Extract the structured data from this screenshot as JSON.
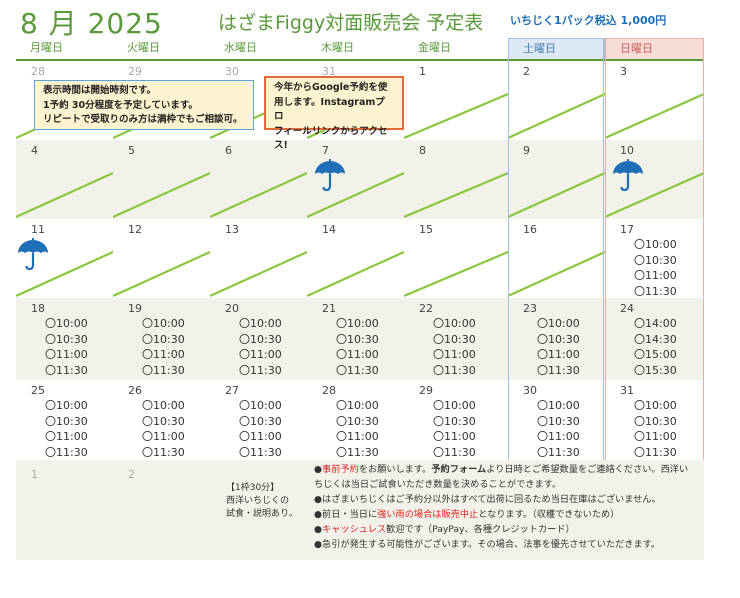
{
  "header": {
    "month": "8 月 2025",
    "title": "はざまFiggy対面販売会 予定表",
    "price": "いちじく1パック税込 1,000円"
  },
  "weekdays": [
    "月曜日",
    "火曜日",
    "水曜日",
    "木曜日",
    "金曜日",
    "土曜日",
    "日曜日"
  ],
  "weeks": [
    [
      {
        "d": "28",
        "dim": true
      },
      {
        "d": "29",
        "dim": true
      },
      {
        "d": "30",
        "dim": true
      },
      {
        "d": "31",
        "dim": true
      },
      {
        "d": "1"
      },
      {
        "d": "2"
      },
      {
        "d": "3"
      }
    ],
    [
      {
        "d": "4"
      },
      {
        "d": "5"
      },
      {
        "d": "6"
      },
      {
        "d": "7",
        "rain": true
      },
      {
        "d": "8"
      },
      {
        "d": "9"
      },
      {
        "d": "10",
        "rain": true
      }
    ],
    [
      {
        "d": "11",
        "rain": true
      },
      {
        "d": "12"
      },
      {
        "d": "13"
      },
      {
        "d": "14"
      },
      {
        "d": "15"
      },
      {
        "d": "16"
      },
      {
        "d": "17",
        "slots": [
          "〇10:00",
          "〇10:30",
          "〇11:00",
          "〇11:30"
        ]
      }
    ],
    [
      {
        "d": "18",
        "slots": [
          "〇10:00",
          "〇10:30",
          "〇11:00",
          "〇11:30"
        ]
      },
      {
        "d": "19",
        "slots": [
          "〇10:00",
          "〇10:30",
          "〇11:00",
          "〇11:30"
        ]
      },
      {
        "d": "20",
        "slots": [
          "〇10:00",
          "〇10:30",
          "〇11:00",
          "〇11:30"
        ]
      },
      {
        "d": "21",
        "slots": [
          "〇10:00",
          "〇10:30",
          "〇11:00",
          "〇11:30"
        ]
      },
      {
        "d": "22",
        "slots": [
          "〇10:00",
          "〇10:30",
          "〇11:00",
          "〇11:30"
        ]
      },
      {
        "d": "23",
        "slots": [
          "〇10:00",
          "〇10:30",
          "〇11:00",
          "〇11:30"
        ]
      },
      {
        "d": "24",
        "slots": [
          "〇14:00",
          "〇14:30",
          "〇15:00",
          "〇15:30"
        ]
      }
    ],
    [
      {
        "d": "25",
        "slots": [
          "〇10:00",
          "〇10:30",
          "〇11:00",
          "〇11:30"
        ]
      },
      {
        "d": "26",
        "slots": [
          "〇10:00",
          "〇10:30",
          "〇11:00",
          "〇11:30"
        ]
      },
      {
        "d": "27",
        "slots": [
          "〇10:00",
          "〇10:30",
          "〇11:00",
          "〇11:30"
        ]
      },
      {
        "d": "28",
        "slots": [
          "〇10:00",
          "〇10:30",
          "〇11:00",
          "〇11:30"
        ]
      },
      {
        "d": "29",
        "slots": [
          "〇10:00",
          "〇10:30",
          "〇11:00",
          "〇11:30"
        ]
      },
      {
        "d": "30",
        "slots": [
          "〇10:00",
          "〇10:30",
          "〇11:00",
          "〇11:30"
        ]
      },
      {
        "d": "31",
        "slots": [
          "〇10:00",
          "〇10:30",
          "〇11:00",
          "〇11:30"
        ]
      }
    ]
  ],
  "notes": {
    "note1": [
      "表示時間は開始時刻です。",
      "1予約 30分程度を予定しています。",
      "リピートで受取りのみ方は満枠でもご相談可。"
    ],
    "note2": [
      "今年からGoogle予約を使",
      "用します。Instagramプロ",
      "フィールリンクからアクセス!"
    ]
  },
  "bottom": {
    "next1": "1",
    "next2": "2",
    "slotinfo": [
      "【1枠30分】",
      "西洋いちじくの",
      "試食・説明あり。"
    ],
    "info": [
      {
        "parts": [
          {
            "t": "●"
          },
          {
            "t": "事前予約",
            "c": "red"
          },
          {
            "t": "をお願いします。"
          },
          {
            "t": "予約フォーム",
            "b": true
          },
          {
            "t": "より日時とご希望数量をご連絡ください。西洋い"
          }
        ]
      },
      {
        "parts": [
          {
            "t": "ちじくは当日ご試食いただき数量を決めることができます。"
          }
        ]
      },
      {
        "parts": [
          {
            "t": "●はざまいちじくはご予約分以外はすべて出荷に回るため当日在庫はございません。"
          }
        ]
      },
      {
        "parts": [
          {
            "t": "●前日・当日に"
          },
          {
            "t": "強い雨の場合は販売中止",
            "c": "red"
          },
          {
            "t": "となります。（収穫できないため）"
          }
        ]
      },
      {
        "parts": [
          {
            "t": "●"
          },
          {
            "t": "キャッシュレス",
            "c": "red"
          },
          {
            "t": "歓迎です（PayPay、各種クレジットカード）"
          }
        ]
      },
      {
        "parts": [
          {
            "t": "●急引が発生する可能性がございます。その場合、法事を優先させていただきます。"
          }
        ]
      }
    ]
  },
  "colors": {
    "green": "#5a9a3a",
    "diag": "#8bc63f",
    "umbrella": "#1f6fb8",
    "red": "#e02020"
  }
}
